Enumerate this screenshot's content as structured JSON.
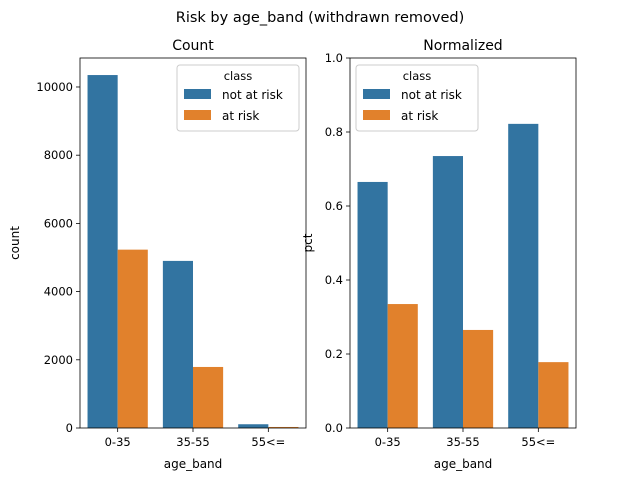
{
  "figure": {
    "title": "Risk by age_band (withdrawn removed)"
  },
  "colors": {
    "not_at_risk": "#3274a1",
    "at_risk": "#e1812c"
  },
  "chart_data": [
    {
      "type": "bar",
      "title": "Count",
      "xlabel": "age_band",
      "ylabel": "count",
      "categories": [
        "0-35",
        "35-55",
        "55<="
      ],
      "ylim": [
        0,
        10850
      ],
      "yticks": [
        0,
        2000,
        4000,
        6000,
        8000,
        10000
      ],
      "ytick_labels": [
        "0",
        "2000",
        "4000",
        "6000",
        "8000",
        "10000"
      ],
      "legend": {
        "title": "class",
        "position": "top-right"
      },
      "series": [
        {
          "name": "not at risk",
          "values": [
            10350,
            4900,
            110
          ]
        },
        {
          "name": "at risk",
          "values": [
            5230,
            1790,
            30
          ]
        }
      ]
    },
    {
      "type": "bar",
      "title": "Normalized",
      "xlabel": "age_band",
      "ylabel": "pct",
      "categories": [
        "0-35",
        "35-55",
        "55<="
      ],
      "ylim": [
        0,
        1.0
      ],
      "yticks": [
        0,
        0.2,
        0.4,
        0.6,
        0.8,
        1.0
      ],
      "ytick_labels": [
        "0.0",
        "0.2",
        "0.4",
        "0.6",
        "0.8",
        "1.0"
      ],
      "legend": {
        "title": "class",
        "position": "top-left"
      },
      "series": [
        {
          "name": "not at risk",
          "values": [
            0.665,
            0.735,
            0.822
          ]
        },
        {
          "name": "at risk",
          "values": [
            0.335,
            0.265,
            0.178
          ]
        }
      ]
    }
  ]
}
